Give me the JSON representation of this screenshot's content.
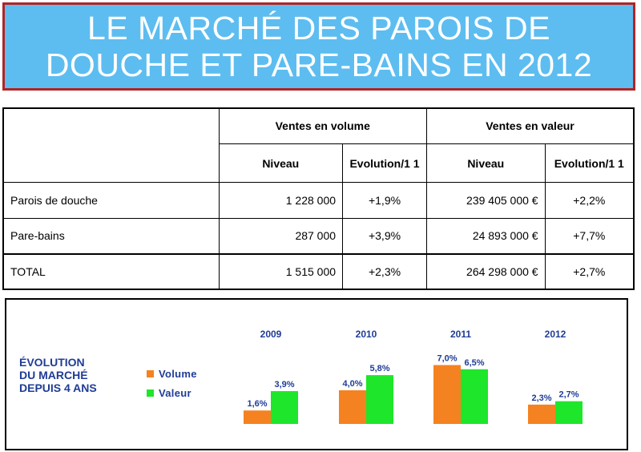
{
  "title": {
    "line1": "LE MARCHÉ DES PAROIS DE",
    "line2": "DOUCHE ET PARE-BAINS EN 2012"
  },
  "table": {
    "group_headers": [
      "Ventes en volume",
      "Ventes en valeur"
    ],
    "sub_headers": [
      "Niveau",
      "Evolution/1 1",
      "Niveau",
      "Evolution/1 1"
    ],
    "rows": [
      {
        "label": "Parois de douche",
        "vol_level": "1 228 000",
        "vol_evo": "+1,9%",
        "val_level": "239 405 000 €",
        "val_evo": "+2,2%"
      },
      {
        "label": "Pare-bains",
        "vol_level": "287 000",
        "vol_evo": "+3,9%",
        "val_level": "24 893 000 €",
        "val_evo": "+7,7%"
      },
      {
        "label": "TOTAL",
        "vol_level": "1 515 000",
        "vol_evo": "+2,3%",
        "val_level": "264 298 000 €",
        "val_evo": "+2,7%"
      }
    ]
  },
  "chart_title": {
    "line1": "ÉVOLUTION",
    "line2": "DU MARCHÉ",
    "line3": "DEPUIS 4 ANS"
  },
  "colors": {
    "title_bg": "#5dbdf0",
    "title_border": "#b22424",
    "volume": "#f58220",
    "valeur": "#1ee62a",
    "chart_text": "#1f3c96"
  },
  "chart_data": {
    "type": "bar",
    "categories": [
      "2009",
      "2010",
      "2011",
      "2012"
    ],
    "series": [
      {
        "name": "Volume",
        "values": [
          1.6,
          4.0,
          7.0,
          2.3
        ],
        "labels": [
          "1,6%",
          "4,0%",
          "7,0%",
          "2,3%"
        ]
      },
      {
        "name": "Valeur",
        "values": [
          3.9,
          5.8,
          6.5,
          2.7
        ],
        "labels": [
          "3,9%",
          "5,8%",
          "6,5%",
          "2,7%"
        ]
      }
    ],
    "legend_position": "left",
    "grid": false
  }
}
